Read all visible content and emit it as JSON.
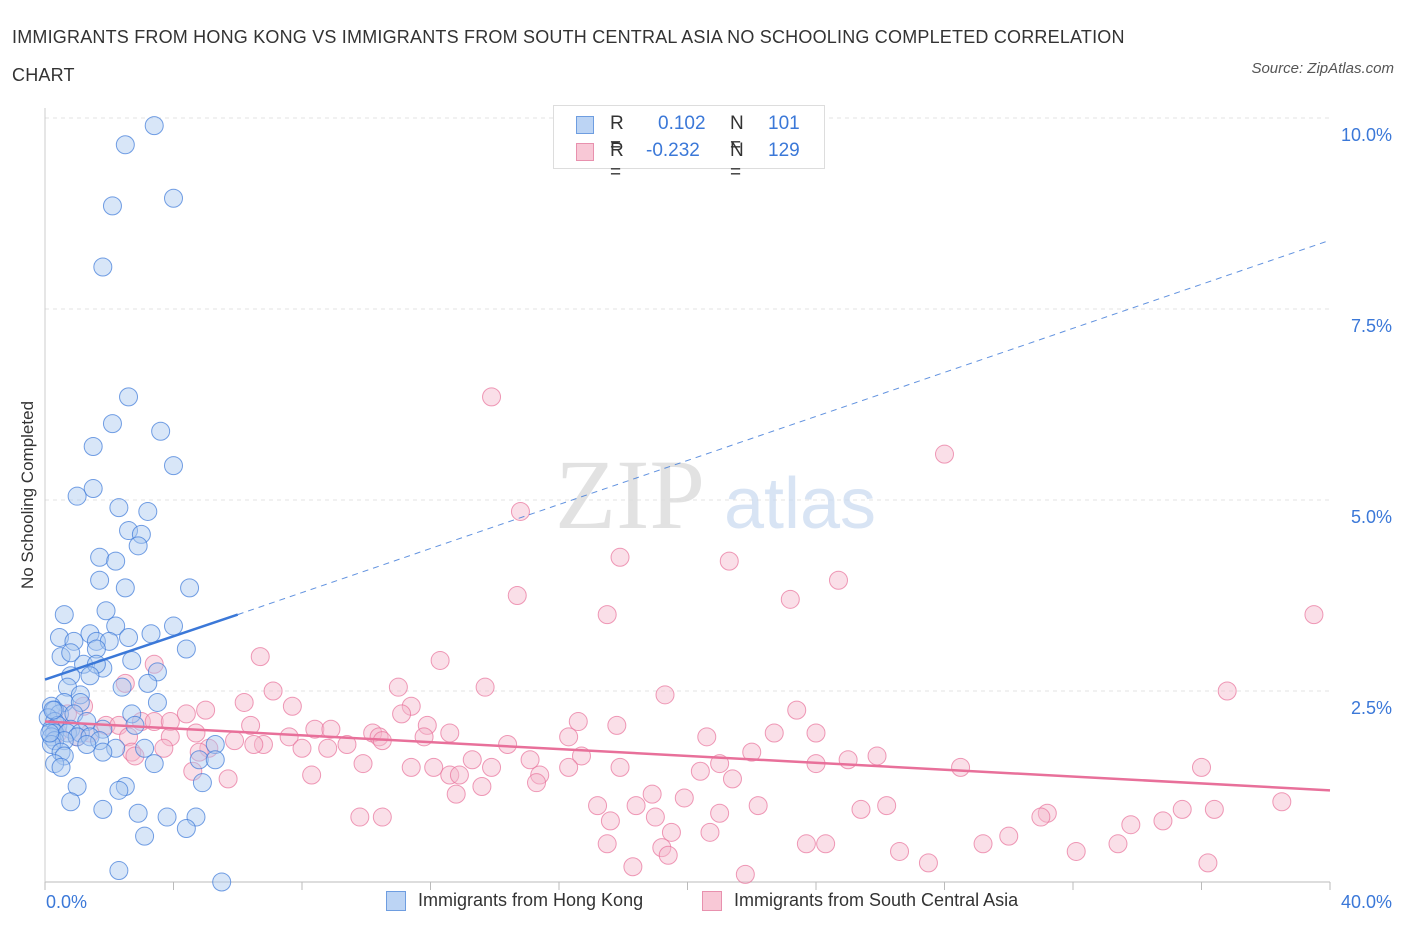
{
  "title": "IMMIGRANTS FROM HONG KONG VS IMMIGRANTS FROM SOUTH CENTRAL ASIA NO SCHOOLING COMPLETED CORRELATION CHART",
  "source": "Source: ZipAtlas.com",
  "watermark": {
    "zip": "ZIP",
    "atlas": "atlas"
  },
  "legend": {
    "r_label": "R =",
    "n_label": "N =",
    "series1": {
      "r": "0.102",
      "n": "101"
    },
    "series2": {
      "r": "-0.232",
      "n": "129"
    }
  },
  "colors": {
    "blue": "#3b78d8",
    "blue_fill": "#a8c8f0",
    "pink": "#e8709a",
    "pink_fill": "#f5b8cb",
    "grid": "#e3e3e3",
    "tick_label": "#3b78d8"
  },
  "chart_data": {
    "type": "scatter",
    "title": "IMMIGRANTS FROM HONG KONG VS IMMIGRANTS FROM SOUTH CENTRAL ASIA NO SCHOOLING COMPLETED CORRELATION CHART",
    "xlabel": "",
    "ylabel": "No Schooling Completed",
    "xlim": [
      0,
      40
    ],
    "ylim": [
      0,
      10
    ],
    "x_tick_labels": [
      "0.0%",
      "40.0%"
    ],
    "y_ticks": [
      2.5,
      5.0,
      7.5,
      10.0
    ],
    "y_tick_labels": [
      "2.5%",
      "5.0%",
      "7.5%",
      "10.0%"
    ],
    "grid": "horizontal dashed",
    "legend_placement": "bottom-center",
    "series": [
      {
        "name": "Immigrants from Hong Kong",
        "color": "#3b78d8",
        "trend": {
          "x": [
            0,
            6.0
          ],
          "y": [
            2.65,
            3.5
          ],
          "extended_x": [
            6.0,
            40
          ],
          "extended_y": [
            3.5,
            8.4
          ]
        },
        "points": [
          [
            3.4,
            9.9
          ],
          [
            2.5,
            9.65
          ],
          [
            2.1,
            8.85
          ],
          [
            4.0,
            8.95
          ],
          [
            1.8,
            8.05
          ],
          [
            2.6,
            6.35
          ],
          [
            2.1,
            6.0
          ],
          [
            3.6,
            5.9
          ],
          [
            1.5,
            5.7
          ],
          [
            4.0,
            5.45
          ],
          [
            1.5,
            5.15
          ],
          [
            1.0,
            5.05
          ],
          [
            2.3,
            4.9
          ],
          [
            3.2,
            4.85
          ],
          [
            2.6,
            4.6
          ],
          [
            3.0,
            4.55
          ],
          [
            2.9,
            4.4
          ],
          [
            1.7,
            4.25
          ],
          [
            2.2,
            4.2
          ],
          [
            1.7,
            3.95
          ],
          [
            2.5,
            3.85
          ],
          [
            4.5,
            3.85
          ],
          [
            0.6,
            3.5
          ],
          [
            1.9,
            3.55
          ],
          [
            2.2,
            3.35
          ],
          [
            4.0,
            3.35
          ],
          [
            0.45,
            3.2
          ],
          [
            1.4,
            3.25
          ],
          [
            2.6,
            3.2
          ],
          [
            3.3,
            3.25
          ],
          [
            0.9,
            3.15
          ],
          [
            1.6,
            3.15
          ],
          [
            2.0,
            3.15
          ],
          [
            1.6,
            3.05
          ],
          [
            0.5,
            2.95
          ],
          [
            2.7,
            2.9
          ],
          [
            4.4,
            3.05
          ],
          [
            1.8,
            2.8
          ],
          [
            1.2,
            2.85
          ],
          [
            1.6,
            2.85
          ],
          [
            0.8,
            2.7
          ],
          [
            1.4,
            2.7
          ],
          [
            3.5,
            2.75
          ],
          [
            0.7,
            2.55
          ],
          [
            2.4,
            2.55
          ],
          [
            3.2,
            2.6
          ],
          [
            1.1,
            2.45
          ],
          [
            0.6,
            2.35
          ],
          [
            1.1,
            2.35
          ],
          [
            3.5,
            2.35
          ],
          [
            0.2,
            2.3
          ],
          [
            0.3,
            2.25
          ],
          [
            0.45,
            2.2
          ],
          [
            0.9,
            2.2
          ],
          [
            2.7,
            2.2
          ],
          [
            0.1,
            2.15
          ],
          [
            0.3,
            2.1
          ],
          [
            1.3,
            2.1
          ],
          [
            2.8,
            2.05
          ],
          [
            0.4,
            2.05
          ],
          [
            0.2,
            2.0
          ],
          [
            0.8,
            2.0
          ],
          [
            1.8,
            2.0
          ],
          [
            0.3,
            1.95
          ],
          [
            0.7,
            1.95
          ],
          [
            1.1,
            1.95
          ],
          [
            0.2,
            1.9
          ],
          [
            1.0,
            1.9
          ],
          [
            1.4,
            1.9
          ],
          [
            0.3,
            1.85
          ],
          [
            0.6,
            1.85
          ],
          [
            1.7,
            1.85
          ],
          [
            0.2,
            1.8
          ],
          [
            1.3,
            1.8
          ],
          [
            5.3,
            1.8
          ],
          [
            2.2,
            1.75
          ],
          [
            3.1,
            1.75
          ],
          [
            0.5,
            1.7
          ],
          [
            1.8,
            1.7
          ],
          [
            0.6,
            1.65
          ],
          [
            4.8,
            1.6
          ],
          [
            3.4,
            1.55
          ],
          [
            0.3,
            1.55
          ],
          [
            5.3,
            1.6
          ],
          [
            0.5,
            1.5
          ],
          [
            4.9,
            1.3
          ],
          [
            1.0,
            1.25
          ],
          [
            2.5,
            1.25
          ],
          [
            2.3,
            1.2
          ],
          [
            0.8,
            1.05
          ],
          [
            1.8,
            0.95
          ],
          [
            2.9,
            0.9
          ],
          [
            3.8,
            0.85
          ],
          [
            4.7,
            0.85
          ],
          [
            4.4,
            0.7
          ],
          [
            3.1,
            0.6
          ],
          [
            2.3,
            0.15
          ],
          [
            5.5,
            0.0
          ],
          [
            0.25,
            2.25
          ],
          [
            0.15,
            1.95
          ],
          [
            0.8,
            3.0
          ]
        ]
      },
      {
        "name": "Immigrants from South Central Asia",
        "color": "#e8709a",
        "trend": {
          "x": [
            0,
            40
          ],
          "y": [
            2.1,
            1.2
          ]
        },
        "points": [
          [
            13.9,
            6.35
          ],
          [
            28.0,
            5.6
          ],
          [
            14.8,
            4.85
          ],
          [
            17.9,
            4.25
          ],
          [
            21.3,
            4.2
          ],
          [
            24.7,
            3.95
          ],
          [
            14.7,
            3.75
          ],
          [
            23.2,
            3.7
          ],
          [
            17.5,
            3.5
          ],
          [
            39.5,
            3.5
          ],
          [
            6.7,
            2.95
          ],
          [
            12.3,
            2.9
          ],
          [
            3.4,
            2.85
          ],
          [
            2.5,
            2.6
          ],
          [
            7.1,
            2.5
          ],
          [
            11.0,
            2.55
          ],
          [
            13.7,
            2.55
          ],
          [
            19.3,
            2.45
          ],
          [
            36.8,
            2.5
          ],
          [
            6.2,
            2.35
          ],
          [
            7.7,
            2.3
          ],
          [
            11.4,
            2.3
          ],
          [
            5.0,
            2.25
          ],
          [
            4.4,
            2.2
          ],
          [
            11.1,
            2.2
          ],
          [
            23.4,
            2.25
          ],
          [
            3.0,
            2.1
          ],
          [
            3.4,
            2.1
          ],
          [
            6.4,
            2.05
          ],
          [
            11.9,
            2.05
          ],
          [
            16.6,
            2.1
          ],
          [
            17.8,
            2.05
          ],
          [
            1.9,
            2.05
          ],
          [
            2.3,
            2.05
          ],
          [
            3.9,
            2.1
          ],
          [
            8.4,
            2.0
          ],
          [
            8.9,
            2.0
          ],
          [
            10.2,
            1.95
          ],
          [
            12.6,
            1.95
          ],
          [
            22.7,
            1.95
          ],
          [
            24.0,
            1.95
          ],
          [
            1.4,
            1.95
          ],
          [
            2.6,
            1.9
          ],
          [
            4.7,
            1.95
          ],
          [
            7.6,
            1.9
          ],
          [
            10.4,
            1.9
          ],
          [
            11.8,
            1.9
          ],
          [
            16.3,
            1.9
          ],
          [
            20.6,
            1.9
          ],
          [
            3.9,
            1.9
          ],
          [
            5.9,
            1.85
          ],
          [
            6.8,
            1.8
          ],
          [
            8.0,
            1.75
          ],
          [
            8.8,
            1.75
          ],
          [
            9.4,
            1.8
          ],
          [
            10.5,
            1.85
          ],
          [
            14.4,
            1.8
          ],
          [
            5.1,
            1.75
          ],
          [
            3.7,
            1.75
          ],
          [
            2.7,
            1.7
          ],
          [
            4.8,
            1.7
          ],
          [
            9.9,
            1.55
          ],
          [
            13.3,
            1.6
          ],
          [
            16.7,
            1.65
          ],
          [
            21.0,
            1.55
          ],
          [
            24.0,
            1.55
          ],
          [
            25.0,
            1.6
          ],
          [
            25.9,
            1.65
          ],
          [
            11.4,
            1.5
          ],
          [
            12.1,
            1.5
          ],
          [
            13.9,
            1.5
          ],
          [
            16.3,
            1.5
          ],
          [
            17.9,
            1.5
          ],
          [
            20.4,
            1.45
          ],
          [
            36.0,
            1.5
          ],
          [
            12.6,
            1.4
          ],
          [
            12.9,
            1.4
          ],
          [
            15.4,
            1.4
          ],
          [
            4.6,
            1.45
          ],
          [
            8.3,
            1.4
          ],
          [
            5.7,
            1.35
          ],
          [
            21.4,
            1.35
          ],
          [
            15.3,
            1.3
          ],
          [
            13.6,
            1.25
          ],
          [
            12.8,
            1.15
          ],
          [
            18.9,
            1.15
          ],
          [
            19.9,
            1.1
          ],
          [
            17.2,
            1.0
          ],
          [
            18.4,
            1.0
          ],
          [
            22.2,
            1.0
          ],
          [
            25.4,
            0.95
          ],
          [
            26.2,
            1.0
          ],
          [
            31.2,
            0.9
          ],
          [
            35.4,
            0.95
          ],
          [
            36.4,
            0.95
          ],
          [
            38.5,
            1.05
          ],
          [
            19.0,
            0.85
          ],
          [
            10.5,
            0.85
          ],
          [
            9.8,
            0.85
          ],
          [
            21.0,
            0.9
          ],
          [
            17.6,
            0.8
          ],
          [
            34.8,
            0.8
          ],
          [
            33.8,
            0.75
          ],
          [
            20.7,
            0.65
          ],
          [
            19.5,
            0.65
          ],
          [
            30.0,
            0.6
          ],
          [
            29.2,
            0.5
          ],
          [
            33.4,
            0.5
          ],
          [
            24.3,
            0.5
          ],
          [
            23.7,
            0.5
          ],
          [
            17.5,
            0.5
          ],
          [
            19.2,
            0.45
          ],
          [
            32.1,
            0.4
          ],
          [
            26.6,
            0.4
          ],
          [
            19.4,
            0.35
          ],
          [
            31.0,
            0.85
          ],
          [
            27.5,
            0.25
          ],
          [
            36.2,
            0.25
          ],
          [
            18.3,
            0.2
          ],
          [
            21.8,
            0.1
          ],
          [
            22.0,
            1.7
          ],
          [
            28.5,
            1.5
          ],
          [
            1.2,
            2.3
          ],
          [
            2.8,
            1.65
          ],
          [
            0.7,
            2.2
          ],
          [
            1.0,
            1.9
          ],
          [
            0.4,
            1.95
          ],
          [
            6.5,
            1.8
          ],
          [
            15.1,
            1.6
          ]
        ]
      }
    ]
  },
  "bottom_legend": {
    "series1_label": "Immigrants from Hong Kong",
    "series2_label": "Immigrants from South Central Asia"
  }
}
